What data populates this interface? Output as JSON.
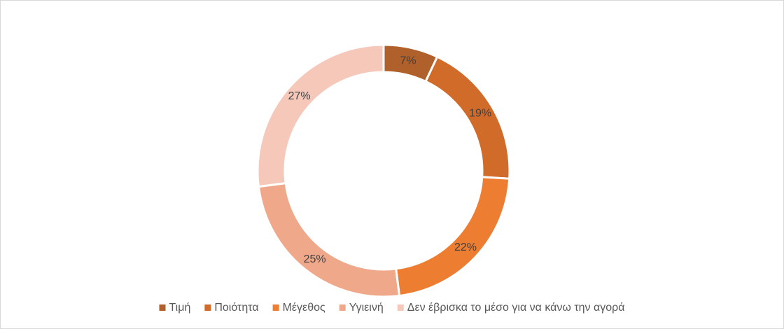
{
  "chart_data": {
    "type": "doughnut",
    "categories": [
      "Τιμή",
      "Ποιότητα",
      "Μέγεθος",
      "Υγιεινή",
      "Δεν έβρισκα το μέσο για να κάνω την αγορά"
    ],
    "values": [
      7,
      19,
      22,
      25,
      27
    ],
    "value_labels": [
      "7%",
      "19%",
      "22%",
      "25%",
      "27%"
    ],
    "colors": [
      "#B0602A",
      "#D16B2A",
      "#ED7D31",
      "#F0A88A",
      "#F5C8BA"
    ],
    "legend": "bottom"
  }
}
